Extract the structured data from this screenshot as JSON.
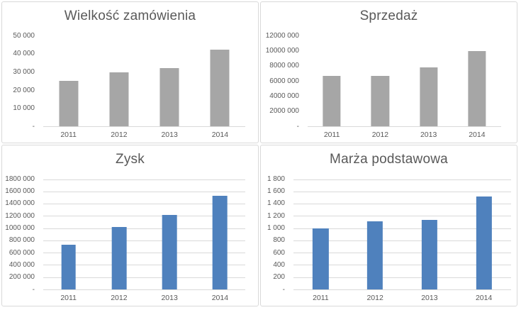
{
  "colors": {
    "panel_border": "#d9d9d9",
    "gridline": "#d9d9d9",
    "axis_line": "#d9d9d9",
    "text": "#595959",
    "bar_gray": "#a6a6a6",
    "bar_blue": "#4f81bd"
  },
  "chart_data": [
    {
      "type": "bar",
      "title": "Wielkość zamówienia",
      "categories": [
        "2011",
        "2012",
        "2013",
        "2014"
      ],
      "values": [
        25100,
        29700,
        32200,
        42500
      ],
      "ymax": 50000,
      "ylim": [
        0,
        50000
      ],
      "yticks": [
        "50 000",
        "40 000",
        "30 000",
        "20 000",
        "10 000",
        "-"
      ],
      "gridlines": false,
      "legend": "none",
      "bar_color": "#a6a6a6",
      "bar_width_pct": 38
    },
    {
      "type": "bar",
      "title": "Sprzedaż",
      "categories": [
        "2011",
        "2012",
        "2013",
        "2014"
      ],
      "values": [
        6730000,
        6730000,
        7800000,
        9950000
      ],
      "ymax": 12000000,
      "ylim": [
        0,
        12000000
      ],
      "yticks": [
        "12000 000",
        "10000 000",
        "8000 000",
        "6000 000",
        "4000 000",
        "2000 000",
        "-"
      ],
      "gridlines": false,
      "legend": "none",
      "bar_color": "#a6a6a6",
      "bar_width_pct": 37
    },
    {
      "type": "bar",
      "title": "Zysk",
      "categories": [
        "2011",
        "2012",
        "2013",
        "2014"
      ],
      "values": [
        730000,
        1020000,
        1220000,
        1530000
      ],
      "ymax": 1800000,
      "ylim": [
        0,
        1800000
      ],
      "yticks": [
        "1800 000",
        "1600 000",
        "1400 000",
        "1200 000",
        "1000 000",
        "800 000",
        "600 000",
        "400 000",
        "200 000",
        "-"
      ],
      "gridlines": true,
      "legend": "none",
      "bar_color": "#4f81bd",
      "bar_width_pct": 29
    },
    {
      "type": "bar",
      "title": "Marża podstawowa",
      "categories": [
        "2011",
        "2012",
        "2013",
        "2014"
      ],
      "values": [
        1000,
        1110,
        1130,
        1520
      ],
      "ymax": 1800,
      "ylim": [
        0,
        1800
      ],
      "yticks": [
        "1 800",
        "1 600",
        "1 400",
        "1 200",
        "1 000",
        "800",
        "600",
        "400",
        "200",
        "-"
      ],
      "gridlines": true,
      "legend": "none",
      "bar_color": "#4f81bd",
      "bar_width_pct": 29
    }
  ]
}
